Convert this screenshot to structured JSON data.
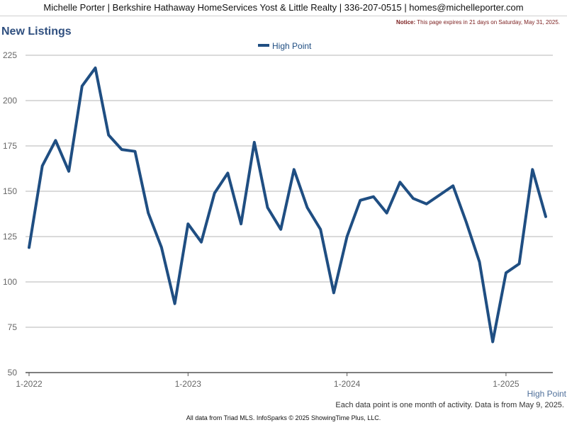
{
  "header": {
    "contact_line": "Michelle Porter | Berkshire Hathaway HomeServices Yost & Little Realty | 336-207-0515 | homes@michelleporter.com"
  },
  "notice": {
    "label": "Notice:",
    "text": "This page expires in 21 days on Saturday, May 31, 2025."
  },
  "page_title": "New Listings",
  "footer": {
    "note": "Each data point is one month of activity. Data is from May 9, 2025.",
    "source": "All data from Triad MLS. InfoSparks © 2025 ShowingTime Plus, LLC."
  },
  "colors": {
    "series": "#1f4e82",
    "grid": "#b5b5b5",
    "axis_text": "#666666",
    "title": "#2f4f7f"
  },
  "chart_data": {
    "type": "line",
    "title": "New Listings",
    "xlabel": "",
    "ylabel": "",
    "ylim": [
      50,
      225
    ],
    "yticks": [
      50,
      75,
      100,
      125,
      150,
      175,
      200,
      225
    ],
    "grid": true,
    "legend_position": "top-center",
    "x_tick_labels": [
      "1-2022",
      "1-2023",
      "1-2024",
      "1-2025"
    ],
    "x_tick_indices": [
      0,
      12,
      24,
      36
    ],
    "x_axis_caption": "High Point",
    "x": [
      "1-2022",
      "2-2022",
      "3-2022",
      "4-2022",
      "5-2022",
      "6-2022",
      "7-2022",
      "8-2022",
      "9-2022",
      "10-2022",
      "11-2022",
      "12-2022",
      "1-2023",
      "2-2023",
      "3-2023",
      "4-2023",
      "5-2023",
      "6-2023",
      "7-2023",
      "8-2023",
      "9-2023",
      "10-2023",
      "11-2023",
      "12-2023",
      "1-2024",
      "2-2024",
      "3-2024",
      "4-2024",
      "5-2024",
      "6-2024",
      "7-2024",
      "8-2024",
      "9-2024",
      "10-2024",
      "11-2024",
      "12-2024",
      "1-2025",
      "2-2025",
      "3-2025",
      "4-2025"
    ],
    "series": [
      {
        "name": "High Point",
        "color": "#1f4e82",
        "values": [
          119,
          164,
          178,
          161,
          208,
          218,
          181,
          173,
          172,
          138,
          119,
          88,
          132,
          122,
          149,
          160,
          132,
          177,
          141,
          129,
          162,
          141,
          129,
          94,
          125,
          145,
          147,
          138,
          155,
          146,
          143,
          148,
          153,
          133,
          111,
          67,
          105,
          110,
          162,
          136
        ]
      }
    ]
  }
}
